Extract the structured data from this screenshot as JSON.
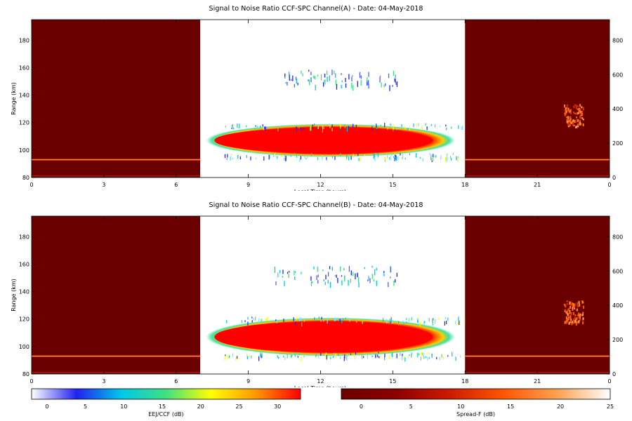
{
  "chart_data": [
    {
      "type": "heatmap",
      "title": "Signal to Noise Ratio CCF-SPC Channel(A) - Date: 04-May-2018",
      "xlabel": "Local Time (hours)",
      "ylabel": "Range (km)",
      "xlim": [
        0,
        24
      ],
      "ylim_left": [
        80,
        195
      ],
      "ylim_right": [
        0,
        920
      ],
      "x_ticks": [
        "0",
        "3",
        "6",
        "9",
        "12",
        "15",
        "18",
        "21",
        "0"
      ],
      "y_ticks_left": [
        "80",
        "100",
        "120",
        "140",
        "160",
        "180"
      ],
      "y_ticks_right": [
        "0",
        "200",
        "400",
        "600",
        "800"
      ],
      "night_blocks": [
        {
          "start_h": 0,
          "end_h": 7.0,
          "scale": "Spread-F (dB)"
        },
        {
          "start_h": 18.0,
          "end_h": 24,
          "scale": "Spread-F (dB)"
        }
      ],
      "day_block": {
        "start_h": 7.0,
        "end_h": 18.0,
        "scale": "EEJ/CCF (dB)"
      },
      "features": [
        {
          "name": "EEJ core",
          "start_h": 8.0,
          "end_h": 18.0,
          "center_km": 107,
          "thickness_km": 10,
          "peak_db": 31
        },
        {
          "name": "150 km echoes",
          "start_h": 10.5,
          "end_h": 15.2,
          "center_km": 153,
          "peak_db": 8
        },
        {
          "name": "Night E-layer trace",
          "range_km": 93,
          "peak_db": 12
        },
        {
          "name": "Spread-F patch",
          "start_h": 22.1,
          "end_h": 22.9,
          "range_right": [
            300,
            430
          ],
          "peak_db": 18
        }
      ]
    },
    {
      "type": "heatmap",
      "title": "Signal to Noise Ratio CCF-SPC Channel(B) - Date: 04-May-2018",
      "xlabel": "Local Time (hours)",
      "ylabel": "Range (km)",
      "xlim": [
        0,
        24
      ],
      "ylim_left": [
        80,
        195
      ],
      "ylim_right": [
        0,
        920
      ],
      "x_ticks": [
        "0",
        "3",
        "6",
        "9",
        "12",
        "15",
        "18",
        "21",
        "0"
      ],
      "y_ticks_left": [
        "80",
        "100",
        "120",
        "140",
        "160",
        "180"
      ],
      "y_ticks_right": [
        "0",
        "200",
        "400",
        "600",
        "800"
      ],
      "night_blocks": [
        {
          "start_h": 0,
          "end_h": 7.0,
          "scale": "Spread-F (dB)"
        },
        {
          "start_h": 18.0,
          "end_h": 24,
          "scale": "Spread-F (dB)"
        }
      ],
      "day_block": {
        "start_h": 7.0,
        "end_h": 18.0,
        "scale": "EEJ/CCF (dB)"
      },
      "features": [
        {
          "name": "EEJ core",
          "start_h": 8.0,
          "end_h": 18.0,
          "center_km": 107,
          "thickness_km": 12,
          "peak_db": 31
        },
        {
          "name": "150 km echoes",
          "start_h": 10.0,
          "end_h": 15.2,
          "center_km": 153,
          "peak_db": 10
        },
        {
          "name": "Night E-layer trace",
          "range_km": 93,
          "peak_db": 12
        },
        {
          "name": "Spread-F patch",
          "start_h": 22.1,
          "end_h": 22.9,
          "range_right": [
            300,
            430
          ],
          "peak_db": 18
        }
      ]
    }
  ],
  "colorbars": [
    {
      "label": "EEJ/CCF (dB)",
      "ticks": [
        "0",
        "5",
        "10",
        "15",
        "20",
        "25",
        "30"
      ],
      "min": -2,
      "max": 33,
      "stops": [
        "#ffffff",
        "#2222ee",
        "#00c8e8",
        "#40e080",
        "#ffff00",
        "#ff9900",
        "#ff0000"
      ]
    },
    {
      "label": "Spread-F (dB)",
      "ticks": [
        "0",
        "5",
        "10",
        "15",
        "20",
        "25"
      ],
      "min": -2,
      "max": 25,
      "stops": [
        "#6b0000",
        "#8b0000",
        "#cc1a00",
        "#ff5500",
        "#ffa050",
        "#ffffff"
      ]
    }
  ],
  "colors": {
    "night_bg": "#6b0000",
    "eej_core": "#ff0000",
    "axis": "#000000"
  }
}
